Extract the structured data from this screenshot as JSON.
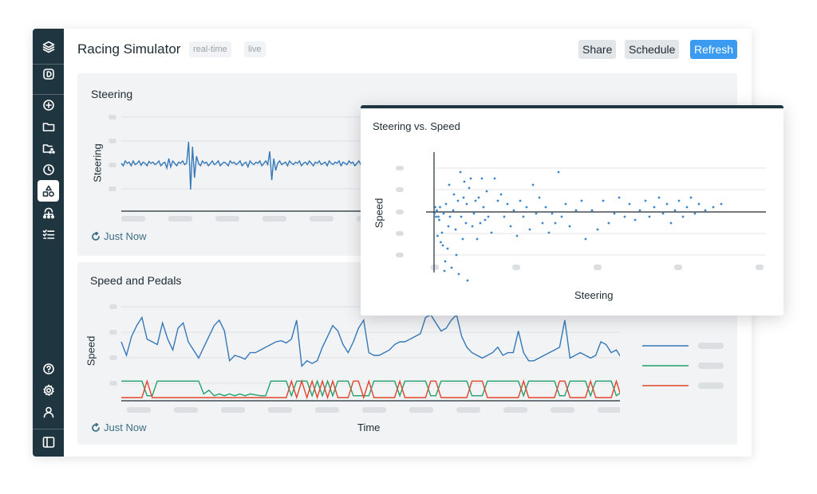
{
  "header": {
    "title": "Racing Simulator",
    "tags": [
      "real-time",
      "live"
    ],
    "buttons": {
      "share": "Share",
      "schedule": "Schedule",
      "refresh": "Refresh"
    }
  },
  "sidebar": {
    "top_icons": [
      "layers-icon",
      "dashboard-d-icon"
    ],
    "nav_icons": [
      "add-circle-icon",
      "folder-icon",
      "shared-folder-icon",
      "clock-icon",
      "shapes-icon",
      "network-icon",
      "checklist-icon"
    ],
    "bottom_icons": [
      "help-icon",
      "gear-icon",
      "user-icon",
      "sidebar-toggle-icon"
    ],
    "active": "shapes-icon"
  },
  "cards": {
    "steering": {
      "title": "Steering",
      "ylabel": "Steering",
      "refresh_text": "Just Now"
    },
    "speed_pedals": {
      "title": "Speed and Pedals",
      "ylabel": "Speed",
      "xlabel": "Time",
      "refresh_text": "Just Now"
    }
  },
  "popup": {
    "title": "Steering vs. Speed",
    "xlabel": "Steering",
    "ylabel": "Speed"
  },
  "colors": {
    "speed": "#3578b8",
    "throttle": "#22a06b",
    "brake": "#e0452b",
    "steering": "#3578b8",
    "scatter": "#3a86c8"
  },
  "chart_data": [
    {
      "type": "line",
      "title": "Steering",
      "ylabel": "Steering",
      "series": [
        {
          "values": [
            0,
            -0.1,
            0.1,
            0,
            0.05,
            -0.1,
            0.1,
            -0.05,
            0,
            0.1,
            -0.08,
            0.05,
            0,
            -0.1,
            0.08,
            0,
            0.05,
            -0.05,
            0,
            0.1,
            -0.1,
            0,
            0.05,
            -0.2,
            0.2,
            -0.15,
            0.1,
            0,
            -0.1,
            0.05,
            0,
            0.1,
            -0.05,
            0,
            0.9,
            -1.1,
            0.7,
            -0.6,
            0.3,
            0,
            -0.1,
            0.1,
            0,
            0.05,
            -0.1,
            0,
            0.1,
            -0.05,
            0,
            0.1,
            -0.1,
            0,
            0.05,
            0,
            -0.1,
            0.1,
            0,
            0.05,
            -0.05,
            0,
            0.1,
            -0.1,
            0,
            0.05,
            -0.15,
            0.1,
            0,
            -0.05,
            0.05,
            0,
            0.1,
            -0.1,
            0,
            0.1,
            -0.05,
            0.5,
            -0.7,
            0.2,
            -0.3,
            0,
            0.1,
            -0.05,
            0,
            0.05,
            -0.1,
            0.1,
            0,
            -0.05,
            0.05,
            0,
            0.1,
            -0.1,
            0,
            0.05,
            -0.05,
            0.1,
            0,
            -0.1,
            0.05,
            0,
            0.1,
            -0.05,
            0,
            0.05,
            -0.1,
            0.1,
            0,
            -0.05,
            0.05,
            0,
            0.1,
            -0.1,
            0.05,
            0,
            -0.05,
            0.1,
            0,
            0.05,
            -0.1,
            0,
            0.1,
            -0.05,
            0,
            0.05,
            -0.1,
            0.1,
            0,
            0,
            0.05,
            -0.05,
            0.1,
            0,
            -0.1,
            0.05,
            0,
            0.1
          ]
        }
      ]
    },
    {
      "type": "line",
      "title": "Speed and Pedals",
      "xlabel": "Time",
      "ylabel": "Speed",
      "series": [
        {
          "values": [
            0.5,
            0.25,
            0.6,
            0.8,
            0.95,
            0.55,
            0.5,
            0.45,
            0.85,
            0.55,
            0.35,
            0.75,
            0.85,
            0.5,
            0.35,
            0.2,
            0.4,
            0.6,
            0.8,
            0.9,
            0.7,
            0.15,
            0.25,
            0.22,
            0.18,
            0.3,
            0.3,
            0.35,
            0.4,
            0.45,
            0.5,
            0.52,
            0.48,
            0.55,
            0.9,
            0.05,
            0.15,
            0.1,
            0.15,
            0.4,
            0.6,
            0.8,
            0.7,
            0.45,
            0.3,
            0.5,
            0.75,
            0.9,
            0.3,
            0.25,
            0.25,
            0.3,
            0.35,
            0.45,
            0.5,
            0.5,
            0.55,
            0.6,
            0.65,
            0.95,
            1.0,
            0.85,
            0.7,
            0.75,
            0.9,
            1.0,
            0.6,
            0.4,
            0.3,
            0.25,
            0.2,
            0.25,
            0.3,
            0.4,
            0.25,
            0.3,
            0.3,
            0.7,
            0.3,
            0.15,
            0.15,
            0.2,
            0.25,
            0.3,
            0.35,
            0.4,
            0.9,
            0.2,
            0.25,
            0.3,
            0.25,
            0.2,
            0.25,
            0.5,
            0.45,
            0.3,
            0.35,
            0.2
          ]
        },
        {
          "values": [
            0.9,
            0.9,
            0.9,
            0.9,
            0.9,
            0.1,
            0.1,
            0.9,
            0.9,
            0.9,
            0.9,
            0.9,
            0.9,
            0.9,
            0.9,
            0.9,
            0.2,
            0.4,
            0.1,
            0.2,
            0.1,
            0.2,
            0.1,
            0.2,
            0.1,
            0.2,
            0.15,
            0.1,
            0.1,
            0.9,
            0.9,
            0.9,
            0.9,
            0.1,
            0.9,
            0.9,
            0.9,
            0.1,
            0.9,
            0.1,
            0.9,
            0.1,
            0.9,
            0.9,
            0.9,
            0.1,
            0.1,
            0.1,
            0.1,
            0.9,
            0.9,
            0.9,
            0.9,
            0.9,
            0.1,
            0.9,
            0.9,
            0.9,
            0.9,
            0.9,
            0.1,
            0.1,
            0.9,
            0.9,
            0.9,
            0.9,
            0.9,
            0.9,
            0.1,
            0.1,
            0.1,
            0.9,
            0.9,
            0.9,
            0.9,
            0.9,
            0.9,
            0.9,
            0.1,
            0.9,
            0.9,
            0.9,
            0.9,
            0.9,
            0.9,
            0.1,
            0.1,
            0.9,
            0.9,
            0.9,
            0.9,
            0.1,
            0.9,
            0.9,
            0.9,
            0.9,
            0.1,
            0.3
          ]
        },
        {
          "values": [
            0,
            0,
            0,
            0,
            0,
            0.9,
            0,
            0,
            0,
            0,
            0,
            0,
            0,
            0,
            0,
            0,
            0,
            0,
            0,
            0,
            0,
            0,
            0,
            0,
            0,
            0,
            0,
            0,
            0,
            0,
            0,
            0,
            0,
            0.9,
            0,
            0.9,
            0,
            0.9,
            0,
            0.9,
            0,
            0.9,
            0,
            0,
            0,
            0.9,
            0.9,
            0,
            0.9,
            0,
            0,
            0,
            0,
            0,
            0.9,
            0,
            0,
            0,
            0,
            0,
            0.9,
            0.9,
            0,
            0,
            0,
            0,
            0,
            0,
            0.9,
            0.9,
            0.9,
            0,
            0,
            0,
            0,
            0,
            0,
            0,
            0.9,
            0,
            0,
            0,
            0,
            0,
            0,
            0.9,
            0.9,
            0,
            0,
            0,
            0,
            0.9,
            0,
            0,
            0,
            0,
            0.9,
            0
          ]
        }
      ]
    },
    {
      "type": "scatter",
      "title": "Steering vs. Speed",
      "xlabel": "Steering",
      "ylabel": "Speed",
      "points": [
        [
          0.5,
          1.8
        ],
        [
          1.5,
          1.6
        ],
        [
          2.5,
          1.9
        ],
        [
          3.5,
          1.7
        ],
        [
          4.5,
          2.5
        ],
        [
          5.5,
          1.9
        ],
        [
          6.5,
          2.0
        ],
        [
          7.5,
          1.6
        ],
        [
          8.5,
          2.7
        ],
        [
          10,
          2.4
        ],
        [
          11,
          2.8
        ],
        [
          12,
          1.8
        ],
        [
          13,
          3.6
        ],
        [
          14,
          3.3
        ],
        [
          15,
          1.5
        ],
        [
          17,
          2.9
        ],
        [
          18,
          2.2
        ],
        [
          19,
          0.9
        ],
        [
          20,
          1.9
        ],
        [
          22,
          3.5
        ],
        [
          24,
          1.7
        ],
        [
          25,
          1.2
        ],
        [
          27,
          2.3
        ],
        [
          28,
          3.1
        ],
        [
          30,
          1.4
        ],
        [
          31,
          3.7
        ],
        [
          33,
          0.5
        ],
        [
          34,
          1.9
        ],
        [
          36,
          2.6
        ],
        [
          37,
          1.3
        ],
        [
          38,
          0.8
        ],
        [
          40,
          2.1
        ],
        [
          41,
          1.5
        ],
        [
          42,
          3.9
        ],
        [
          44,
          1.0
        ],
        [
          46,
          0.7
        ],
        [
          48,
          2.2
        ],
        [
          50,
          1.8
        ],
        [
          52,
          1.4
        ],
        [
          54,
          2.6
        ],
        [
          56,
          1.3
        ],
        [
          58,
          2.1
        ],
        [
          60,
          0.7
        ],
        [
          62,
          1.6
        ],
        [
          64,
          2.0
        ],
        [
          66,
          1.1
        ],
        [
          68,
          1.9
        ],
        [
          72,
          2.4
        ],
        [
          76,
          0.7
        ],
        [
          80,
          1.4
        ],
        [
          84,
          1.2
        ],
        [
          88,
          1.9
        ],
        [
          92,
          1.5
        ],
        [
          96,
          2.2
        ],
        [
          100,
          1.7
        ],
        [
          104,
          2.5
        ],
        [
          108,
          1.4
        ],
        [
          112,
          1.9
        ],
        [
          116,
          1.6
        ],
        [
          120,
          2.3
        ],
        [
          124,
          0.9
        ],
        [
          128,
          1.8
        ],
        [
          132,
          1.3
        ],
        [
          136,
          2.1
        ],
        [
          140,
          1.6
        ],
        [
          144,
          2.4
        ],
        [
          148,
          1.8
        ],
        [
          152,
          2.1
        ],
        [
          156,
          0.5
        ],
        [
          160,
          1.9
        ],
        [
          165,
          1.5
        ],
        [
          170,
          2.2
        ],
        [
          178,
          1.7
        ],
        [
          185,
          1.4
        ],
        [
          190,
          2.6
        ],
        [
          198,
          1.7
        ],
        [
          205,
          2.3
        ],
        [
          212,
          1.4
        ],
        [
          219,
          2.1
        ],
        [
          226,
          1.8
        ],
        [
          232,
          1.3
        ],
        [
          239,
          1.9
        ],
        [
          245,
          1.5
        ],
        [
          252,
          2.0
        ],
        [
          258,
          1.7
        ],
        [
          265,
          1.4
        ],
        [
          270,
          1.9
        ],
        [
          276,
          1.6
        ],
        [
          282,
          1.3
        ],
        [
          287,
          1.8
        ],
        [
          292,
          1.5
        ],
        [
          297,
          2.1
        ],
        [
          302,
          1.7
        ],
        [
          307,
          1.4
        ],
        [
          312,
          1.9
        ],
        [
          317,
          1.6
        ],
        [
          322,
          1.3
        ],
        [
          327,
          1.8
        ],
        [
          332,
          1.5
        ],
        [
          340,
          1.7
        ],
        [
          350,
          1.6
        ],
        [
          360,
          1.5
        ]
      ]
    }
  ]
}
